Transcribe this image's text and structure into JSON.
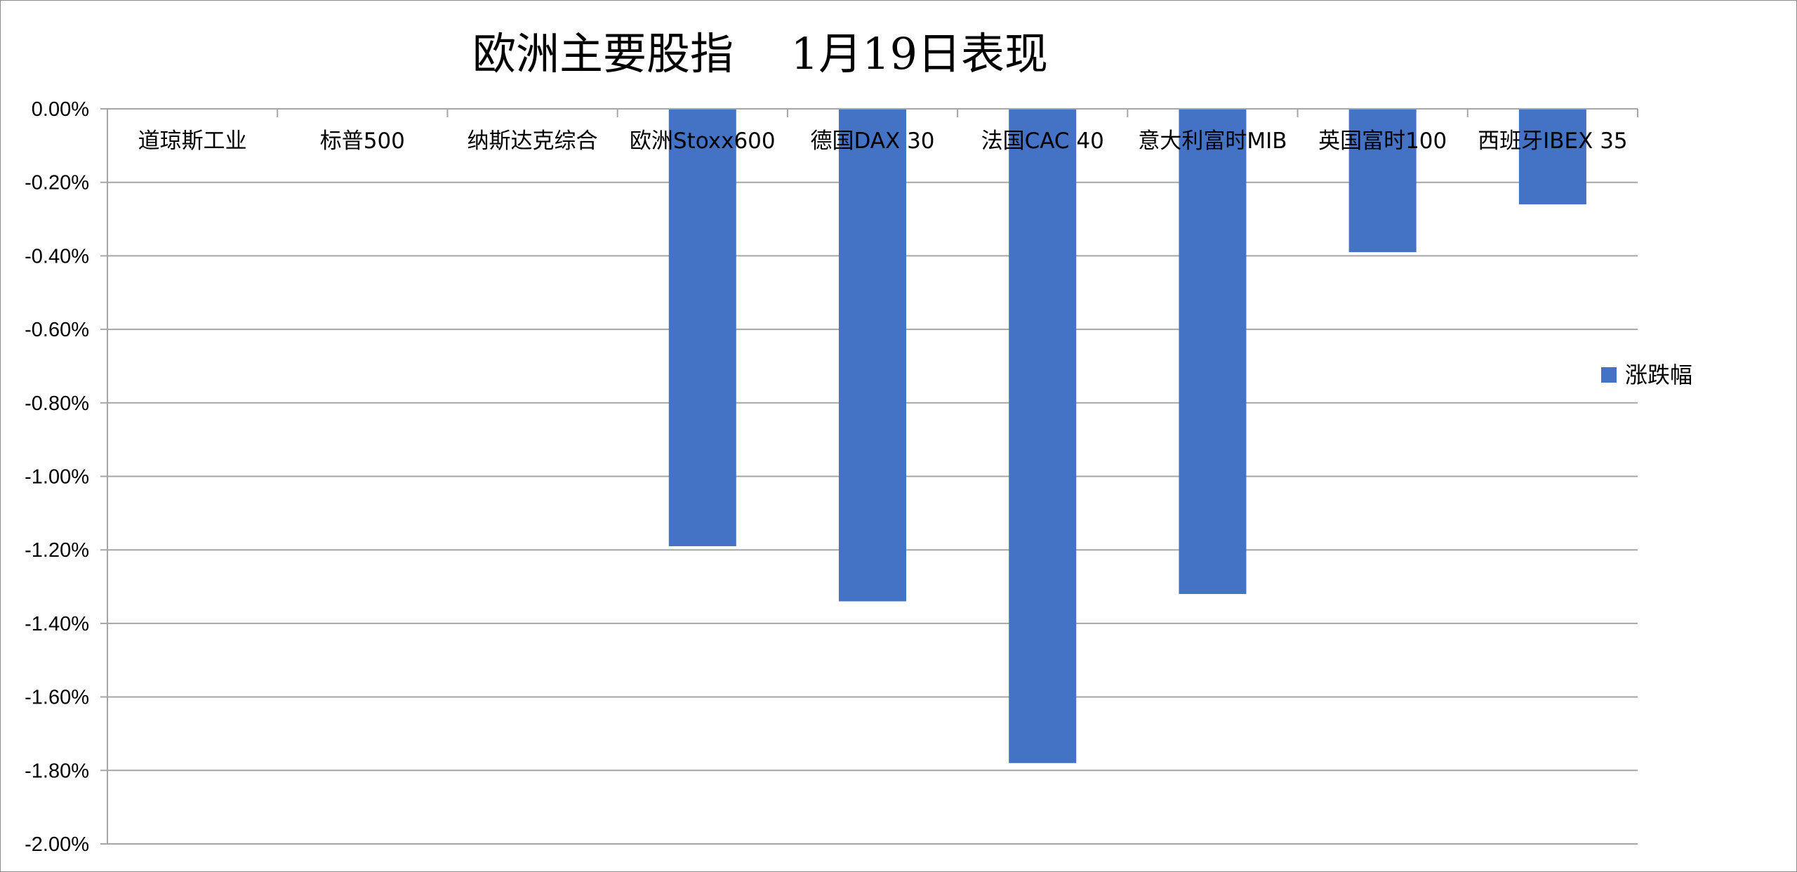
{
  "chart_data": {
    "type": "bar",
    "title": "欧洲主要股指　 1月19日表现",
    "categories": [
      "道琼斯工业",
      "标普500",
      "纳斯达克综合",
      "欧洲Stoxx600",
      "德国DAX 30",
      "法国CAC 40",
      "意大利富时MIB",
      "英国富时100",
      "西班牙IBEX 35"
    ],
    "series": [
      {
        "name": "涨跌幅",
        "color": "#4472c4",
        "values": [
          null,
          null,
          null,
          -1.19,
          -1.34,
          -1.78,
          -1.32,
          -0.39,
          -0.26
        ]
      }
    ],
    "ylim": [
      -2.0,
      0.0
    ],
    "y_ticks": [
      0.0,
      -0.2,
      -0.4,
      -0.6,
      -0.8,
      -1.0,
      -1.2,
      -1.4,
      -1.6,
      -1.8,
      -2.0
    ],
    "y_tick_labels": [
      "0.00%",
      "-0.20%",
      "-0.40%",
      "-0.60%",
      "-0.80%",
      "-1.00%",
      "-1.20%",
      "-1.40%",
      "-1.60%",
      "-1.80%",
      "-2.00%"
    ],
    "grid": true,
    "legend_position": "right",
    "gridline_color": "#a6a6a6"
  }
}
